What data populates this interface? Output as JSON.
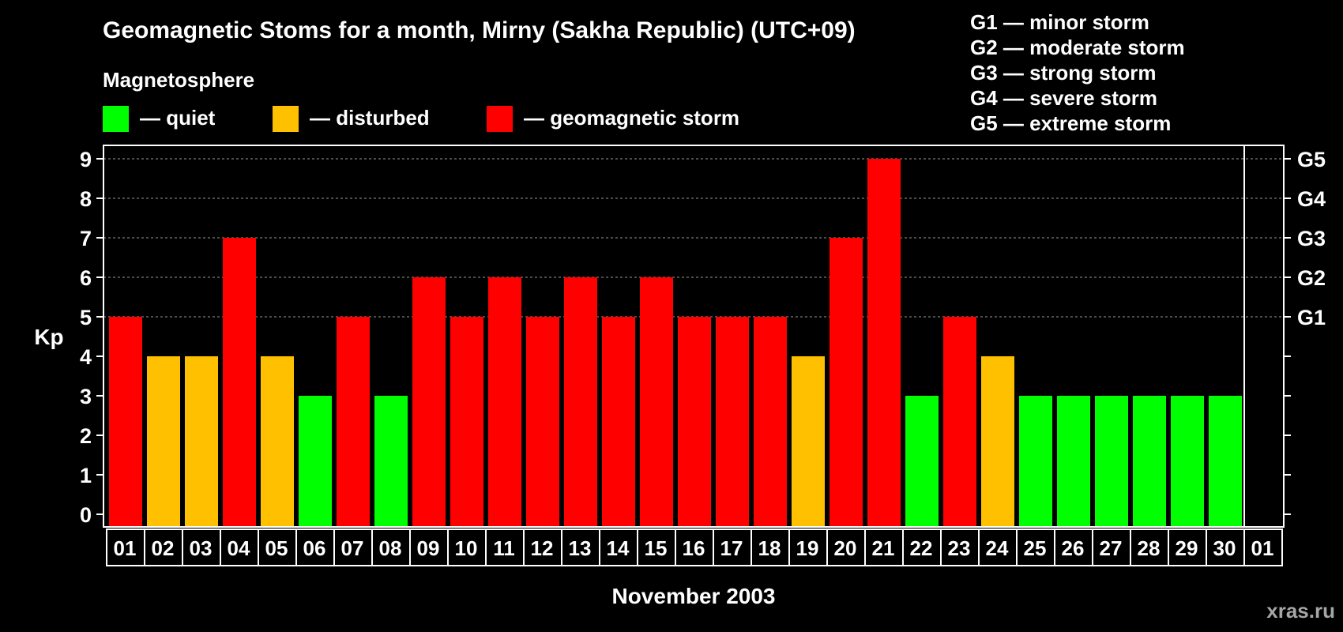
{
  "chart_data": {
    "type": "bar",
    "title": "Geomagnetic Stoms for a month, Mirny (Sakha Republic) (UTC+09)",
    "legend_title": "Magnetosphere",
    "legend": [
      {
        "label": "— quiet",
        "color": "#00ff00"
      },
      {
        "label": "— disturbed",
        "color": "#ffc000"
      },
      {
        "label": "— geomagnetic storm",
        "color": "#ff0000"
      }
    ],
    "storm_scale": [
      "G1 — minor storm",
      "G2 — moderate storm",
      "G3 — strong storm",
      "G4 — severe storm",
      "G5 — extreme storm"
    ],
    "ylabel": "Kp",
    "xlabel": "November 2003",
    "ylim": [
      0,
      9
    ],
    "yticks": [
      "0",
      "1",
      "2",
      "3",
      "4",
      "5",
      "6",
      "7",
      "8",
      "9"
    ],
    "right_labels": [
      {
        "kp": 5,
        "label": "G1"
      },
      {
        "kp": 6,
        "label": "G2"
      },
      {
        "kp": 7,
        "label": "G3"
      },
      {
        "kp": 8,
        "label": "G4"
      },
      {
        "kp": 9,
        "label": "G5"
      }
    ],
    "categories": [
      "01",
      "02",
      "03",
      "04",
      "05",
      "06",
      "07",
      "08",
      "09",
      "10",
      "11",
      "12",
      "13",
      "14",
      "15",
      "16",
      "17",
      "18",
      "19",
      "20",
      "21",
      "22",
      "23",
      "24",
      "25",
      "26",
      "27",
      "28",
      "29",
      "30",
      "01"
    ],
    "values": [
      5,
      4,
      4,
      7,
      4,
      3,
      5,
      3,
      6,
      5,
      6,
      5,
      6,
      5,
      6,
      5,
      5,
      5,
      4,
      7,
      9,
      3,
      5,
      4,
      3,
      3,
      3,
      3,
      3,
      3,
      null
    ],
    "colors": {
      "quiet": "#00ff00",
      "disturbed": "#ffc000",
      "storm": "#ff0000"
    },
    "watermark": "xras.ru"
  }
}
